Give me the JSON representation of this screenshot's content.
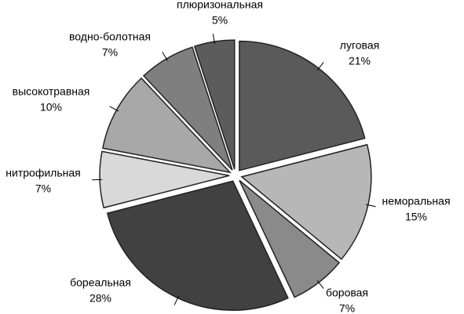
{
  "chart_data": {
    "type": "pie",
    "categories": [
      "луговая",
      "неморальная",
      "боровая",
      "бореальная",
      "нитрофильная",
      "высокотравная",
      "водно-болотная",
      "плюризональная"
    ],
    "values": [
      21,
      15,
      7,
      28,
      7,
      10,
      7,
      5
    ],
    "value_labels": [
      "21%",
      "15%",
      "7%",
      "28%",
      "7%",
      "10%",
      "7%",
      "5%"
    ],
    "colors": [
      "#5a5a5a",
      "#b7b7b7",
      "#8a8a8a",
      "#414141",
      "#d9d9d9",
      "#a8a8a8",
      "#7f7f7f",
      "#5c5c5c"
    ]
  }
}
